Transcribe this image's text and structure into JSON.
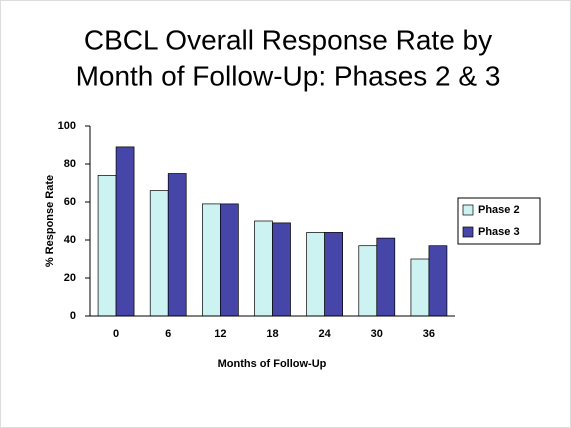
{
  "chart_data": {
    "type": "bar",
    "title": [
      "CBCL Overall Response Rate by",
      "Month of Follow-Up: Phases 2 & 3"
    ],
    "x_label": "Months of Follow-Up",
    "y_label": "% Response Rate",
    "categories": [
      "0",
      "6",
      "12",
      "18",
      "24",
      "30",
      "36"
    ],
    "series": [
      {
        "name": "Phase 2",
        "color": "#ccf2f2",
        "values": [
          74,
          66,
          59,
          50,
          44,
          37,
          30
        ]
      },
      {
        "name": "Phase 3",
        "color": "#4646a8",
        "values": [
          89,
          75,
          59,
          49,
          44,
          41,
          37
        ]
      }
    ],
    "ylim": [
      0,
      100
    ],
    "yticks": [
      0,
      20,
      40,
      60,
      80,
      100
    ],
    "legend": "right"
  }
}
